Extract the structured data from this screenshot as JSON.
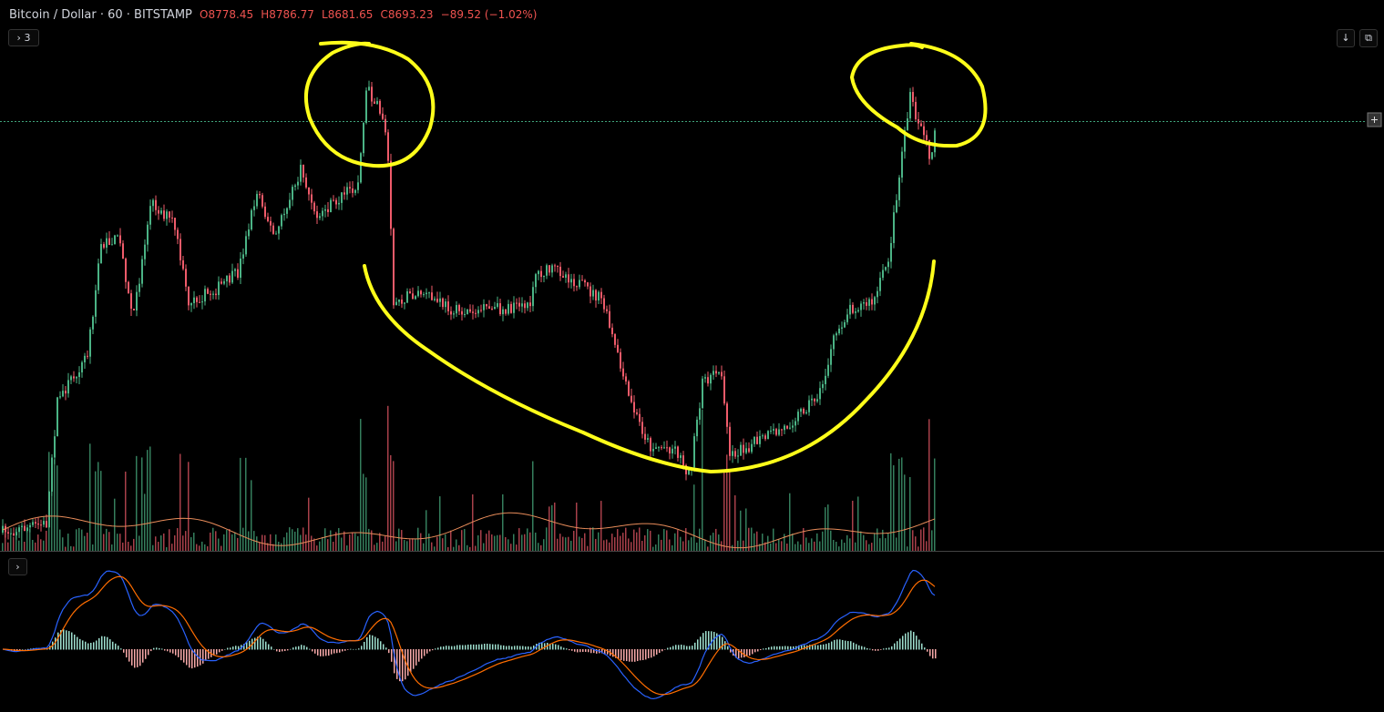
{
  "header": {
    "symbol": "Bitcoin / Dollar · 60 · BITSTAMP",
    "open": "O8778.45",
    "high": "H8786.77",
    "low": "L8681.65",
    "close": "C8693.23",
    "change": "−89.52 (−1.02%)",
    "indicators_count": "3"
  }
}
